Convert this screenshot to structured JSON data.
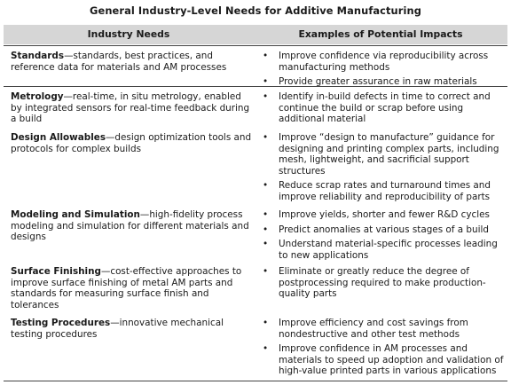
{
  "caption": "General Industry-Level Needs for Additive Manufacturing",
  "headers": [
    "Industry Needs",
    "Examples of Potential Impacts"
  ],
  "rows": [
    {
      "term": "Standards",
      "desc": "—standards, best practices, and reference data for materials and AM processes",
      "impacts": [
        "Improve confidence via reproducibility across manufacturing methods",
        "Provide greater assurance in raw materials"
      ]
    },
    {
      "term": "Metrology",
      "desc": "—real-time, in situ metrology, enabled by integrated sensors for real-time feedback during a build",
      "impacts": [
        "Identify in-build defects in time to correct and continue the build or scrap before using additional material"
      ]
    },
    {
      "term": "Design Allowables",
      "desc": "—design optimization tools and protocols for complex builds",
      "impacts": [
        "Improve “design to manufacture” guidance for designing and printing complex parts, including mesh, lightweight, and sacrificial support structures",
        "Reduce scrap rates and turnaround times and improve reliability and reproducibility of parts"
      ]
    },
    {
      "term": "Modeling and Simulation",
      "desc": "—high-fidelity process modeling and simulation for different materials and designs",
      "impacts": [
        "Improve yields, shorter and fewer R&D cycles",
        "Predict anomalies at various stages of a build",
        "Understand material-specific processes leading to new applications"
      ]
    },
    {
      "term": "Surface Finishing",
      "desc": "—cost-effective approaches to improve surface finishing of metal AM parts and standards for measuring surface finish and tolerances",
      "impacts": [
        "Eliminate or greatly reduce the degree of postprocessing required to make production-quality parts"
      ]
    },
    {
      "term": "Testing Procedures",
      "desc": "—innovative mechanical testing procedures",
      "impacts": [
        "Improve efficiency and cost savings from nondestructive and other test methods",
        "Improve confidence in AM processes and materials to speed up adoption and validation of high-value printed parts in various applications"
      ]
    }
  ]
}
